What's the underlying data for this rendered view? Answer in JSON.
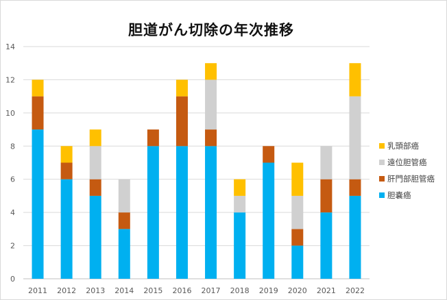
{
  "chart_data": {
    "type": "bar",
    "stacked": true,
    "title": "胆道がん切除の年次推移",
    "categories": [
      "2011",
      "2012",
      "2013",
      "2014",
      "2015",
      "2016",
      "2017",
      "2018",
      "2019",
      "2020",
      "2021",
      "2022"
    ],
    "series": [
      {
        "name": "胆嚢癌",
        "color": "#00b0f0",
        "values": [
          9,
          6,
          5,
          3,
          8,
          8,
          8,
          4,
          7,
          2,
          4,
          5
        ]
      },
      {
        "name": "肝門部胆管癌",
        "color": "#c55a11",
        "values": [
          2,
          1,
          1,
          1,
          1,
          3,
          1,
          0,
          1,
          1,
          2,
          1
        ]
      },
      {
        "name": "遠位胆管癌",
        "color": "#d0d0d0",
        "values": [
          0,
          0,
          2,
          2,
          0,
          0,
          3,
          1,
          0,
          2,
          2,
          5
        ]
      },
      {
        "name": "乳頭部癌",
        "color": "#ffc000",
        "values": [
          1,
          1,
          1,
          0,
          0,
          1,
          1,
          1,
          0,
          2,
          0,
          2
        ]
      }
    ],
    "ylim": [
      0,
      14
    ],
    "yticks": [
      0,
      2,
      4,
      6,
      8,
      10,
      12,
      14
    ],
    "grid": true,
    "legend_position": "right"
  }
}
